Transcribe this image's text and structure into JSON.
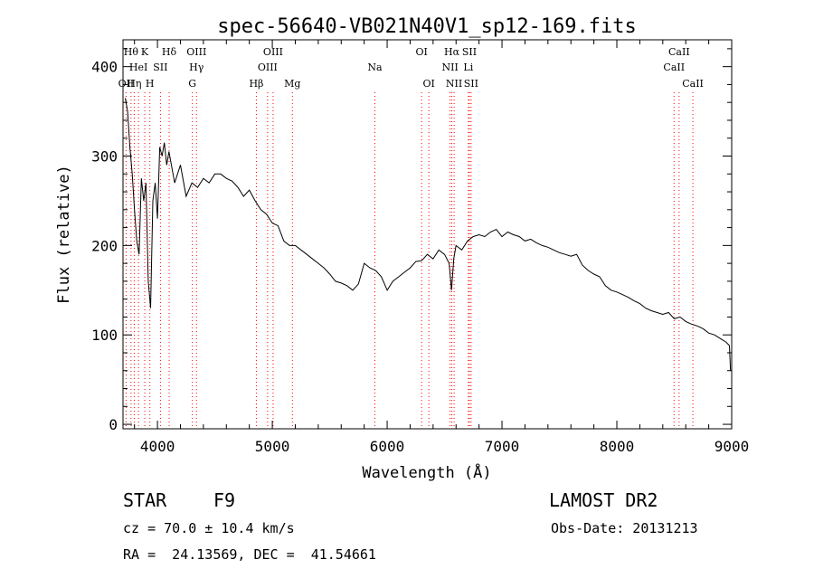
{
  "chart_data": {
    "type": "line",
    "title": "spec-56640-VB021N40V1_sp12-169.fits",
    "xlabel": "Wavelength (Å)",
    "ylabel": "Flux (relative)",
    "xlim": [
      3700,
      9000
    ],
    "ylim": [
      -5,
      430
    ],
    "x_ticks": [
      4000,
      5000,
      6000,
      7000,
      8000,
      9000
    ],
    "y_ticks": [
      0,
      100,
      200,
      300,
      400
    ],
    "grid": false,
    "line_color": "#000000",
    "marker_color": "#ff0000",
    "series": [
      {
        "x": [
          3720,
          3740,
          3760,
          3780,
          3800,
          3820,
          3840,
          3860,
          3880,
          3900,
          3920,
          3940,
          3960,
          3980,
          4000,
          4020,
          4040,
          4060,
          4080,
          4100,
          4150,
          4200,
          4250,
          4300,
          4350,
          4400,
          4450,
          4500,
          4550,
          4600,
          4650,
          4700,
          4750,
          4800,
          4850,
          4900,
          4950,
          5000,
          5050,
          5100,
          5150,
          5200,
          5250,
          5300,
          5350,
          5400,
          5450,
          5500,
          5550,
          5600,
          5650,
          5700,
          5750,
          5800,
          5850,
          5900,
          5950,
          6000,
          6050,
          6100,
          6150,
          6200,
          6250,
          6300,
          6350,
          6400,
          6450,
          6500,
          6540,
          6560,
          6580,
          6600,
          6650,
          6700,
          6750,
          6800,
          6850,
          6900,
          6950,
          7000,
          7050,
          7100,
          7150,
          7200,
          7250,
          7300,
          7350,
          7400,
          7450,
          7500,
          7550,
          7600,
          7650,
          7700,
          7750,
          7800,
          7850,
          7900,
          7950,
          8000,
          8050,
          8100,
          8150,
          8200,
          8250,
          8300,
          8350,
          8400,
          8450,
          8500,
          8550,
          8600,
          8650,
          8700,
          8750,
          8800,
          8850,
          8900,
          8950,
          8980,
          8990
        ],
        "y": [
          365,
          350,
          310,
          280,
          240,
          205,
          190,
          275,
          250,
          270,
          160,
          130,
          250,
          270,
          230,
          310,
          300,
          315,
          290,
          305,
          270,
          290,
          255,
          270,
          265,
          275,
          270,
          280,
          280,
          275,
          272,
          265,
          255,
          262,
          250,
          240,
          235,
          225,
          222,
          205,
          200,
          200,
          195,
          190,
          185,
          180,
          175,
          168,
          160,
          158,
          155,
          150,
          157,
          180,
          175,
          172,
          165,
          150,
          160,
          165,
          170,
          175,
          182,
          183,
          190,
          185,
          195,
          190,
          180,
          150,
          185,
          200,
          195,
          205,
          210,
          212,
          210,
          215,
          218,
          210,
          215,
          212,
          210,
          205,
          207,
          203,
          200,
          198,
          195,
          192,
          190,
          188,
          190,
          178,
          172,
          168,
          165,
          155,
          150,
          148,
          145,
          142,
          138,
          135,
          130,
          127,
          125,
          123,
          125,
          118,
          120,
          115,
          112,
          110,
          107,
          102,
          100,
          96,
          92,
          88,
          60
        ]
      }
    ],
    "line_markers": [
      {
        "x": 3727,
        "labels": [
          "OII"
        ],
        "rows": [
          2
        ]
      },
      {
        "x": 3770,
        "labels": [
          "Hθ"
        ],
        "rows": [
          0
        ]
      },
      {
        "x": 3798,
        "labels": [
          "Hη"
        ],
        "rows": [
          2
        ]
      },
      {
        "x": 3835,
        "labels": [
          "HeI"
        ],
        "rows": [
          1
        ]
      },
      {
        "x": 3889,
        "labels": [
          "K"
        ],
        "rows": [
          0
        ]
      },
      {
        "x": 3934,
        "labels": [
          "H"
        ],
        "rows": [
          2
        ]
      },
      {
        "x": 4026,
        "labels": [
          "SII"
        ],
        "rows": [
          1
        ]
      },
      {
        "x": 4102,
        "labels": [
          "Hδ"
        ],
        "rows": [
          0
        ]
      },
      {
        "x": 4304,
        "labels": [
          "G"
        ],
        "rows": [
          2
        ]
      },
      {
        "x": 4340,
        "labels": [
          "OIII",
          "Hγ"
        ],
        "rows": [
          0,
          1
        ]
      },
      {
        "x": 4861,
        "labels": [
          "Hβ"
        ],
        "rows": [
          2
        ]
      },
      {
        "x": 4959,
        "labels": [
          "OIII"
        ],
        "rows": [
          1
        ]
      },
      {
        "x": 5007,
        "labels": [
          "OIII"
        ],
        "rows": [
          0
        ]
      },
      {
        "x": 5175,
        "labels": [
          "Mg"
        ],
        "rows": [
          2
        ]
      },
      {
        "x": 5893,
        "labels": [
          "Na"
        ],
        "rows": [
          1
        ]
      },
      {
        "x": 6300,
        "labels": [
          "OI"
        ],
        "rows": [
          0
        ]
      },
      {
        "x": 6363,
        "labels": [
          "OI"
        ],
        "rows": [
          2
        ]
      },
      {
        "x": 6548,
        "labels": [
          "NII"
        ],
        "rows": [
          1
        ]
      },
      {
        "x": 6563,
        "labels": [
          "Hα"
        ],
        "rows": [
          0
        ]
      },
      {
        "x": 6583,
        "labels": [
          "NII"
        ],
        "rows": [
          2
        ]
      },
      {
        "x": 6707,
        "labels": [
          "Li"
        ],
        "rows": [
          1
        ]
      },
      {
        "x": 6716,
        "labels": [
          "SII"
        ],
        "rows": [
          0
        ]
      },
      {
        "x": 6731,
        "labels": [
          "SII"
        ],
        "rows": [
          2
        ]
      },
      {
        "x": 8498,
        "labels": [
          "CaII"
        ],
        "rows": [
          1
        ]
      },
      {
        "x": 8542,
        "labels": [
          "CaII"
        ],
        "rows": [
          0
        ]
      },
      {
        "x": 8662,
        "labels": [
          "CaII"
        ],
        "rows": [
          2
        ]
      }
    ]
  },
  "info": {
    "class_label": "STAR",
    "subclass": "F9",
    "survey": "LAMOST DR2",
    "redshift_text": "cz = 70.0 ± 10.4 km/s",
    "obs_date_text": "Obs-Date: 20131213",
    "coords_text": "RA =  24.13569, DEC =  41.54661"
  }
}
